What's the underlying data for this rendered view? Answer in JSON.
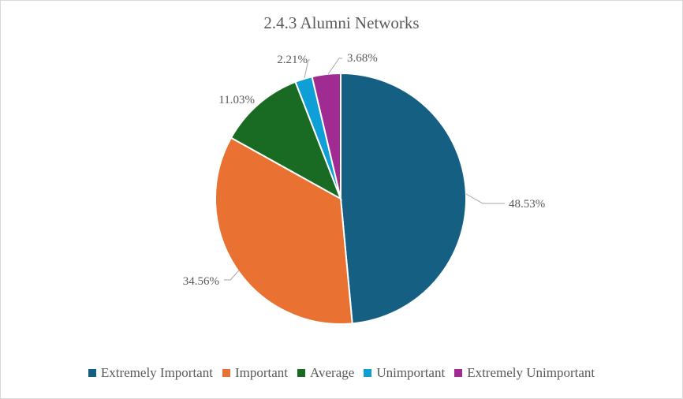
{
  "chart_data": {
    "type": "pie",
    "title": "2.4.3 Alumni Networks",
    "legend_position": "bottom",
    "categories": [
      "Extremely Important",
      "Important",
      "Average",
      "Unimportant",
      "Extremely Unimportant"
    ],
    "values": [
      48.53,
      34.56,
      11.03,
      2.21,
      3.68
    ],
    "labels": [
      "48.53%",
      "34.56%",
      "11.03%",
      "2.21%",
      "3.68%"
    ],
    "colors": [
      "#145f82",
      "#e97132",
      "#196b24",
      "#0f9ed5",
      "#a02b93"
    ]
  }
}
